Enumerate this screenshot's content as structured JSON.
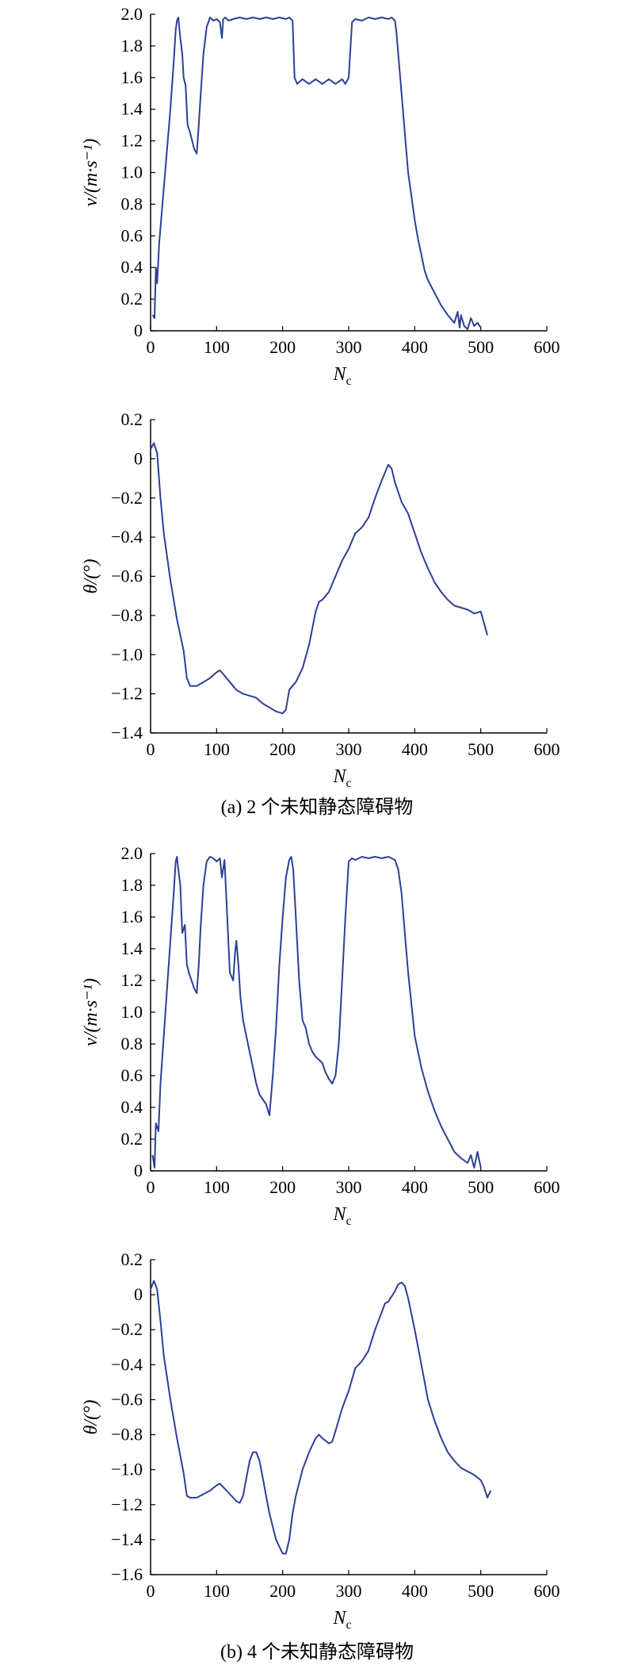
{
  "figure": {
    "captions": [
      {
        "id": "a",
        "text": "(a) 2 个未知静态障碍物"
      },
      {
        "id": "b",
        "text": "(b) 4 个未知静态障碍物"
      }
    ]
  },
  "chart_data": [
    {
      "id": "a-velocity",
      "group": "a",
      "type": "line",
      "xlabel": "N",
      "xlabel_sub": "c",
      "ylabel": "v/(m·s⁻¹)",
      "xlim": [
        0,
        600
      ],
      "ylim": [
        0,
        2.0
      ],
      "xticks": [
        0,
        100,
        200,
        300,
        400,
        500,
        600
      ],
      "yticks": [
        0,
        0.2,
        0.4,
        0.6,
        0.8,
        1.0,
        1.2,
        1.4,
        1.6,
        1.8,
        2.0
      ],
      "ytick_decimals": 1,
      "line_color": "#2e3f96",
      "series": [
        {
          "x": [
            3,
            6,
            8,
            10,
            13,
            18,
            24,
            30,
            35,
            38,
            40,
            42,
            45,
            48,
            50,
            53,
            56,
            60,
            63,
            66,
            70,
            73,
            76,
            80,
            85,
            90,
            95,
            100,
            105,
            108,
            110,
            113,
            118,
            125,
            135,
            145,
            155,
            165,
            175,
            185,
            195,
            205,
            210,
            215,
            218,
            222,
            230,
            240,
            250,
            260,
            270,
            280,
            290,
            295,
            300,
            305,
            310,
            320,
            330,
            340,
            350,
            360,
            365,
            370,
            372,
            375,
            380,
            385,
            390,
            395,
            400,
            405,
            410,
            415,
            420,
            430,
            440,
            450,
            460,
            465,
            468,
            470,
            475,
            480,
            485,
            490,
            495,
            500
          ],
          "y": [
            0.1,
            0.08,
            0.4,
            0.3,
            0.55,
            0.8,
            1.1,
            1.4,
            1.7,
            1.9,
            1.96,
            1.98,
            1.85,
            1.75,
            1.6,
            1.55,
            1.3,
            1.25,
            1.2,
            1.15,
            1.12,
            1.3,
            1.5,
            1.75,
            1.92,
            1.98,
            1.96,
            1.97,
            1.95,
            1.85,
            1.97,
            1.98,
            1.96,
            1.97,
            1.98,
            1.97,
            1.98,
            1.97,
            1.98,
            1.97,
            1.98,
            1.97,
            1.98,
            1.96,
            1.6,
            1.56,
            1.59,
            1.56,
            1.59,
            1.56,
            1.59,
            1.56,
            1.59,
            1.56,
            1.6,
            1.95,
            1.97,
            1.96,
            1.98,
            1.97,
            1.98,
            1.97,
            1.98,
            1.96,
            1.9,
            1.75,
            1.5,
            1.25,
            1.0,
            0.85,
            0.7,
            0.58,
            0.48,
            0.38,
            0.32,
            0.24,
            0.16,
            0.1,
            0.05,
            0.12,
            0.02,
            0.1,
            0.03,
            0.01,
            0.08,
            0.03,
            0.05,
            0.02
          ]
        }
      ]
    },
    {
      "id": "a-angle",
      "group": "a",
      "type": "line",
      "xlabel": "N",
      "xlabel_sub": "c",
      "ylabel": "θ/(°)",
      "xlim": [
        0,
        600
      ],
      "ylim": [
        -1.4,
        0.2
      ],
      "xticks": [
        0,
        100,
        200,
        300,
        400,
        500,
        600
      ],
      "yticks": [
        0.2,
        0,
        -0.2,
        -0.4,
        -0.6,
        -0.8,
        -1.0,
        -1.2,
        -1.4
      ],
      "ytick_decimals": 1,
      "line_color": "#2e3f96",
      "series": [
        {
          "x": [
            0,
            5,
            10,
            15,
            20,
            30,
            40,
            50,
            55,
            60,
            70,
            80,
            90,
            100,
            105,
            110,
            120,
            130,
            140,
            150,
            160,
            170,
            180,
            190,
            200,
            205,
            210,
            220,
            230,
            240,
            250,
            255,
            260,
            270,
            280,
            290,
            300,
            310,
            320,
            330,
            340,
            350,
            360,
            365,
            370,
            380,
            390,
            400,
            410,
            420,
            430,
            440,
            450,
            460,
            470,
            480,
            490,
            500,
            505,
            510
          ],
          "y": [
            0.05,
            0.08,
            0.03,
            -0.2,
            -0.38,
            -0.62,
            -0.82,
            -0.98,
            -1.12,
            -1.16,
            -1.16,
            -1.14,
            -1.12,
            -1.09,
            -1.08,
            -1.1,
            -1.14,
            -1.18,
            -1.2,
            -1.21,
            -1.22,
            -1.25,
            -1.27,
            -1.29,
            -1.3,
            -1.28,
            -1.18,
            -1.14,
            -1.07,
            -0.95,
            -0.78,
            -0.73,
            -0.72,
            -0.68,
            -0.6,
            -0.52,
            -0.46,
            -0.38,
            -0.35,
            -0.3,
            -0.2,
            -0.11,
            -0.03,
            -0.05,
            -0.12,
            -0.22,
            -0.28,
            -0.38,
            -0.48,
            -0.56,
            -0.63,
            -0.68,
            -0.72,
            -0.75,
            -0.76,
            -0.77,
            -0.79,
            -0.78,
            -0.84,
            -0.9
          ]
        }
      ]
    },
    {
      "id": "b-velocity",
      "group": "b",
      "type": "line",
      "xlabel": "N",
      "xlabel_sub": "c",
      "ylabel": "v/(m·s⁻¹)",
      "xlim": [
        0,
        600
      ],
      "ylim": [
        0,
        2.0
      ],
      "xticks": [
        0,
        100,
        200,
        300,
        400,
        500,
        600
      ],
      "yticks": [
        0,
        0.2,
        0.4,
        0.6,
        0.8,
        1.0,
        1.2,
        1.4,
        1.6,
        1.8,
        2.0
      ],
      "ytick_decimals": 1,
      "line_color": "#2e3f96",
      "series": [
        {
          "x": [
            3,
            6,
            8,
            12,
            15,
            20,
            25,
            30,
            35,
            38,
            40,
            42,
            45,
            48,
            52,
            55,
            58,
            62,
            66,
            70,
            73,
            76,
            80,
            85,
            90,
            95,
            100,
            105,
            108,
            112,
            115,
            120,
            125,
            128,
            130,
            133,
            136,
            140,
            145,
            150,
            155,
            160,
            165,
            170,
            175,
            180,
            182,
            185,
            190,
            195,
            200,
            205,
            210,
            213,
            216,
            220,
            225,
            230,
            235,
            240,
            245,
            250,
            255,
            260,
            265,
            270,
            275,
            280,
            285,
            290,
            295,
            300,
            305,
            310,
            320,
            330,
            340,
            350,
            360,
            365,
            370,
            375,
            380,
            385,
            390,
            395,
            400,
            410,
            420,
            430,
            440,
            450,
            460,
            470,
            480,
            485,
            490,
            495,
            500
          ],
          "y": [
            0.1,
            0.02,
            0.3,
            0.25,
            0.55,
            0.85,
            1.15,
            1.45,
            1.75,
            1.95,
            1.98,
            1.9,
            1.8,
            1.5,
            1.55,
            1.3,
            1.25,
            1.2,
            1.15,
            1.12,
            1.3,
            1.55,
            1.8,
            1.95,
            1.98,
            1.97,
            1.95,
            1.97,
            1.85,
            1.96,
            1.7,
            1.25,
            1.2,
            1.38,
            1.45,
            1.3,
            1.1,
            0.95,
            0.85,
            0.75,
            0.65,
            0.55,
            0.48,
            0.45,
            0.42,
            0.35,
            0.45,
            0.6,
            0.9,
            1.3,
            1.6,
            1.85,
            1.96,
            1.98,
            1.9,
            1.6,
            1.2,
            0.95,
            0.9,
            0.8,
            0.75,
            0.72,
            0.7,
            0.68,
            0.62,
            0.58,
            0.55,
            0.6,
            0.8,
            1.2,
            1.6,
            1.95,
            1.97,
            1.96,
            1.98,
            1.97,
            1.98,
            1.97,
            1.98,
            1.97,
            1.96,
            1.9,
            1.75,
            1.5,
            1.25,
            1.05,
            0.85,
            0.65,
            0.5,
            0.38,
            0.28,
            0.2,
            0.12,
            0.08,
            0.05,
            0.1,
            0.02,
            0.12,
            0.02
          ]
        }
      ]
    },
    {
      "id": "b-angle",
      "group": "b",
      "type": "line",
      "xlabel": "N",
      "xlabel_sub": "c",
      "ylabel": "θ/(°)",
      "xlim": [
        0,
        600
      ],
      "ylim": [
        -1.6,
        0.2
      ],
      "xticks": [
        0,
        100,
        200,
        300,
        400,
        500,
        600
      ],
      "yticks": [
        0.2,
        0,
        -0.2,
        -0.4,
        -0.6,
        -0.8,
        -1.0,
        -1.2,
        -1.4,
        -1.6
      ],
      "ytick_decimals": 1,
      "line_color": "#2e3f96",
      "series": [
        {
          "x": [
            0,
            5,
            10,
            15,
            20,
            30,
            40,
            50,
            55,
            60,
            70,
            80,
            90,
            100,
            105,
            110,
            120,
            130,
            135,
            140,
            145,
            150,
            155,
            160,
            165,
            170,
            175,
            180,
            190,
            200,
            205,
            210,
            215,
            220,
            230,
            240,
            250,
            255,
            260,
            270,
            275,
            280,
            290,
            300,
            310,
            320,
            330,
            340,
            350,
            355,
            360,
            370,
            375,
            380,
            385,
            390,
            400,
            410,
            420,
            430,
            440,
            450,
            460,
            470,
            480,
            490,
            500,
            505,
            510,
            515
          ],
          "y": [
            0.03,
            0.08,
            0.03,
            -0.15,
            -0.35,
            -0.6,
            -0.82,
            -1.02,
            -1.15,
            -1.16,
            -1.16,
            -1.14,
            -1.12,
            -1.09,
            -1.08,
            -1.1,
            -1.14,
            -1.18,
            -1.19,
            -1.15,
            -1.05,
            -0.95,
            -0.9,
            -0.9,
            -0.95,
            -1.05,
            -1.15,
            -1.25,
            -1.4,
            -1.48,
            -1.48,
            -1.4,
            -1.25,
            -1.15,
            -1.0,
            -0.9,
            -0.82,
            -0.8,
            -0.82,
            -0.85,
            -0.84,
            -0.78,
            -0.65,
            -0.55,
            -0.42,
            -0.38,
            -0.32,
            -0.2,
            -0.1,
            -0.05,
            -0.04,
            0.02,
            0.06,
            0.07,
            0.05,
            -0.02,
            -0.2,
            -0.4,
            -0.6,
            -0.72,
            -0.82,
            -0.9,
            -0.95,
            -0.99,
            -1.01,
            -1.03,
            -1.06,
            -1.1,
            -1.16,
            -1.12
          ]
        }
      ]
    }
  ]
}
